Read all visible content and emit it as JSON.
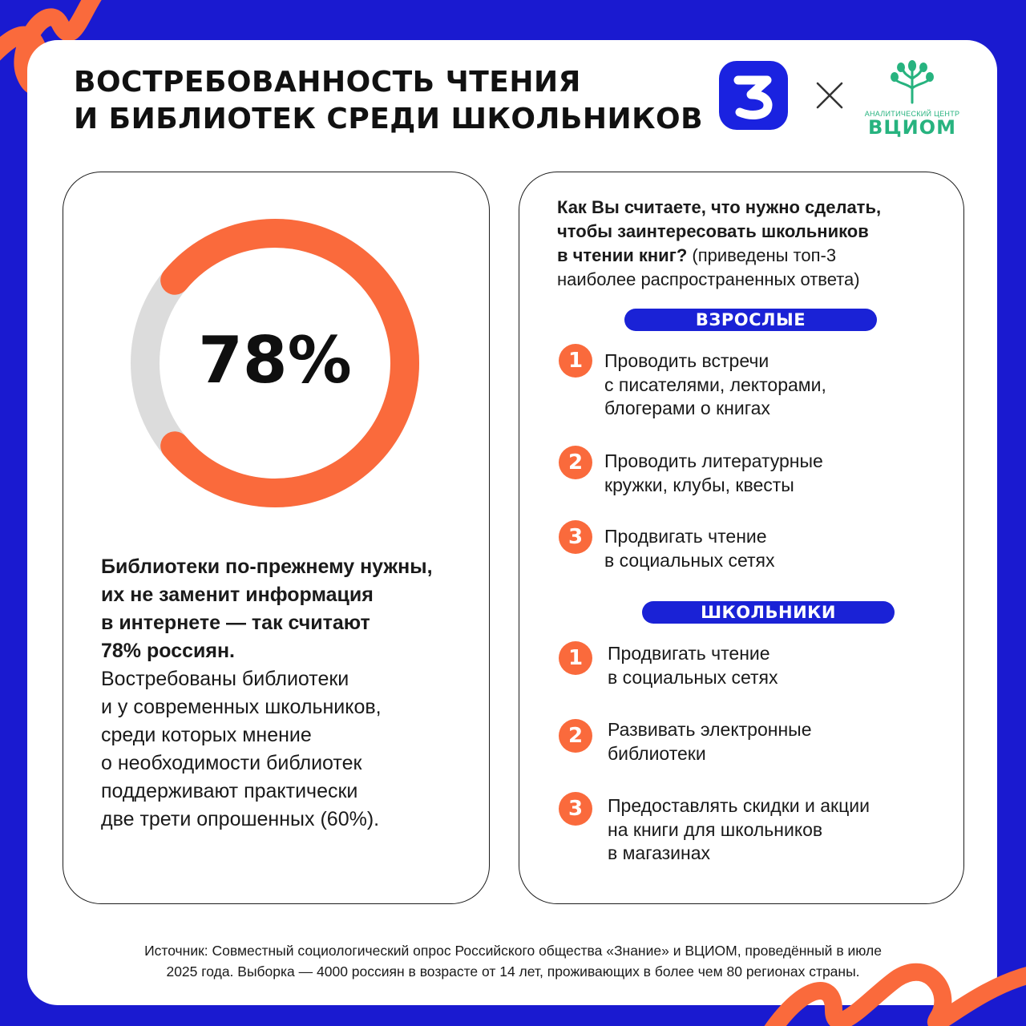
{
  "colors": {
    "background": "#1a1ad0",
    "accent_orange": "#fa6a3c",
    "pill_blue": "#1a22d6",
    "donut_track": "#dcdcdc",
    "vciom_green": "#27b37f"
  },
  "header": {
    "title_lines": [
      "Востребованность чтения",
      "и библиотек среди школьников"
    ],
    "logo_znanie_icon": "znanie-logo-icon",
    "times_icon": "cross-icon",
    "vciom_sub": "АНАЛИТИЧЕСКИЙ ЦЕНТР",
    "vciom_brand": "ВЦИОМ"
  },
  "left": {
    "percent_label": "78%",
    "percent_value": 78,
    "bold_lines": [
      "Библиотеки по-прежнему нужны,",
      "их не заменит информация",
      "в интернете — так считают",
      "78% россиян."
    ],
    "regular_lines": [
      "Востребованы библиотеки",
      "и у современных школьников,",
      "среди которых мнение",
      "о необходимости библиотек",
      "поддерживают практически",
      "две трети опрошенных (60%)."
    ]
  },
  "right": {
    "question_bold_lines": [
      "Как Вы считаете, что нужно сделать,",
      "чтобы заинтересовать школьников",
      "в чтении книг?"
    ],
    "question_tail_inline": " (приведены топ-3",
    "question_tail_line": "наиболее распространенных ответа)",
    "adults_label": "ВЗРОСЛЫЕ",
    "adults": [
      {
        "num": "1",
        "lines": [
          "Проводить встречи",
          "с писателями, лекторами,",
          "блогерами о книгах"
        ]
      },
      {
        "num": "2",
        "lines": [
          "Проводить литературные",
          "кружки, клубы, квесты"
        ]
      },
      {
        "num": "3",
        "lines": [
          "Продвигать чтение",
          "в социальных сетях"
        ]
      }
    ],
    "students_label": "ШКОЛЬНИКИ",
    "students": [
      {
        "num": "1",
        "lines": [
          "Продвигать чтение",
          "в социальных сетях"
        ]
      },
      {
        "num": "2",
        "lines": [
          "Развивать электронные",
          "библиотеки"
        ]
      },
      {
        "num": "3",
        "lines": [
          "Предоставлять скидки и акции",
          "на книги для школьников",
          "в магазинах"
        ]
      }
    ]
  },
  "source": {
    "lines": [
      "Источник: Совместный социологический опрос Российского общества «Знание» и ВЦИОМ, проведённый в июле",
      "2025 года. Выборка — 4000 россиян в возрасте от 14 лет, проживающих в более чем 80 регионах страны."
    ]
  }
}
